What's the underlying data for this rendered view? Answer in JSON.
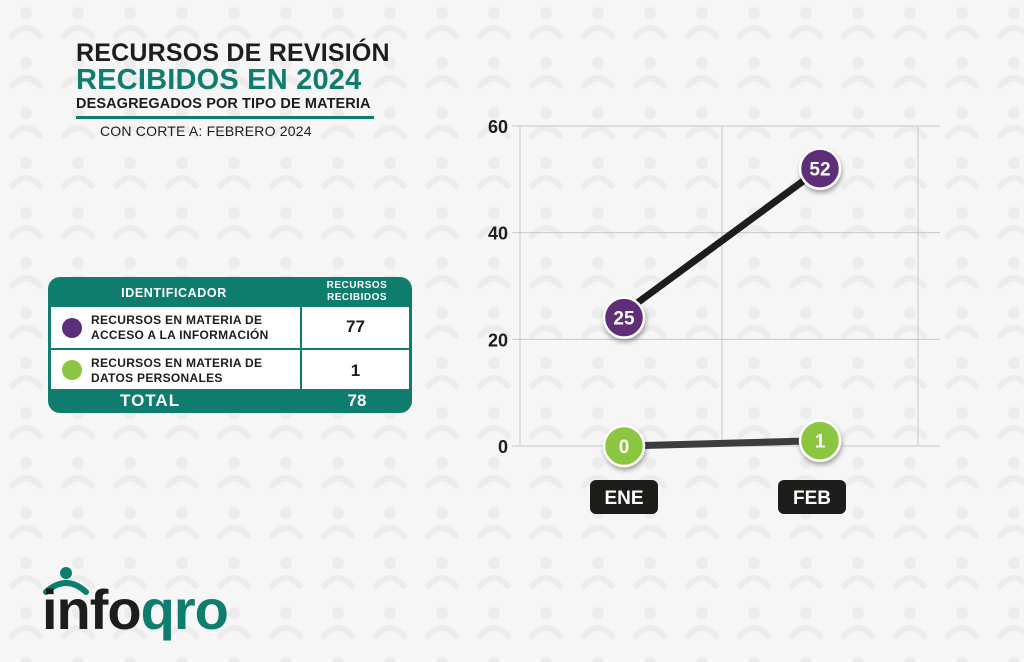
{
  "header": {
    "title_line1": "RECURSOS DE REVISIÓN",
    "title_line2": "RECIBIDOS EN 2024",
    "title_line3": "DESAGREGADOS POR TIPO DE MATERIA",
    "cut_date": "CON CORTE A: FEBRERO 2024"
  },
  "table": {
    "col_identifier": "IDENTIFICADOR",
    "col_received": "RECURSOS RECIBIDOS",
    "rows": [
      {
        "label": "RECURSOS EN MATERIA DE ACCESO A LA INFORMACIÓN",
        "value": "77",
        "color": "#5e2d79"
      },
      {
        "label": "RECURSOS EN MATERIA DE DATOS PERSONALES",
        "value": "1",
        "color": "#8cc540"
      }
    ],
    "total_label": "TOTAL",
    "total_value": "78"
  },
  "chart_data": {
    "type": "line",
    "categories": [
      "ENE",
      "FEB"
    ],
    "series": [
      {
        "values": [
          25,
          52
        ],
        "color": "#5e2d79",
        "line_color": "#1d1d1b"
      },
      {
        "values": [
          0,
          1
        ],
        "color": "#8cc540",
        "line_color": "#3d3d3d"
      }
    ],
    "yticks": [
      0,
      20,
      40,
      60
    ],
    "ylim": [
      0,
      60
    ],
    "grid": true,
    "title": "",
    "xlabel": "",
    "ylabel": ""
  },
  "logo": {
    "text_dark": "info",
    "text_green": "qro"
  }
}
